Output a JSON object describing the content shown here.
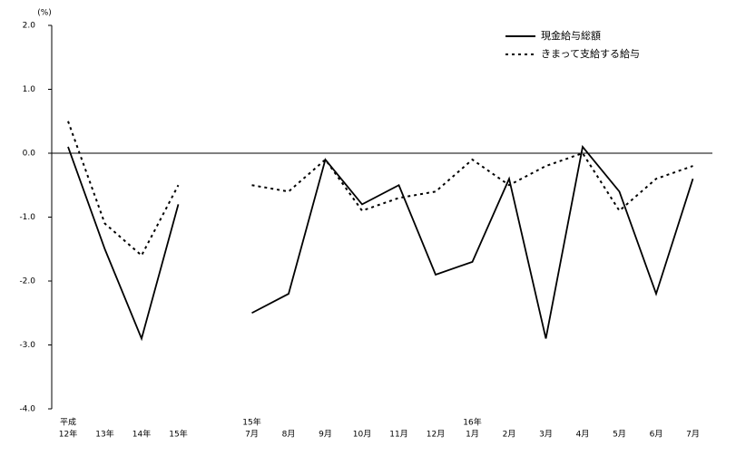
{
  "chart_data": {
    "type": "line",
    "y_unit_label": "(%)",
    "categories": [
      "12年",
      "13年",
      "14年",
      "15年",
      null,
      "7月",
      "8月",
      "9月",
      "10月",
      "11月",
      "12月",
      "1月",
      "2月",
      "3月",
      "4月",
      "5月",
      "6月",
      "7月"
    ],
    "category_top_labels": [
      "平成",
      null,
      null,
      null,
      null,
      "15年",
      null,
      null,
      null,
      null,
      null,
      "16年",
      null,
      null,
      null,
      null,
      null,
      null
    ],
    "series": [
      {
        "name": "現金給与総額",
        "color": "#000000",
        "line_style": "solid",
        "values": [
          0.1,
          -1.5,
          -2.9,
          -0.8,
          null,
          -2.5,
          -2.2,
          -0.1,
          -0.8,
          -0.5,
          -1.9,
          -1.7,
          -0.4,
          -2.9,
          0.1,
          -0.6,
          -2.2,
          -0.4
        ]
      },
      {
        "name": "きまって支給する給与",
        "color": "#000000",
        "line_style": "dotted",
        "values": [
          0.5,
          -1.1,
          -1.6,
          -0.5,
          null,
          -0.5,
          -0.6,
          -0.1,
          -0.9,
          -0.7,
          -0.6,
          -0.1,
          -0.5,
          -0.2,
          0.0,
          -0.9,
          -0.4,
          -0.2
        ]
      }
    ],
    "ylim": [
      -4,
      2
    ],
    "yticks": [
      {
        "value": -4,
        "label": "-4.0"
      },
      {
        "value": -3,
        "label": "-3.0"
      },
      {
        "value": -2,
        "label": "-2.0"
      },
      {
        "value": -1,
        "label": "-1.0"
      },
      {
        "value": 0,
        "label": "0.0"
      },
      {
        "value": 1,
        "label": "1.0"
      },
      {
        "value": 2,
        "label": "2.0"
      }
    ],
    "legend": "top-right"
  }
}
